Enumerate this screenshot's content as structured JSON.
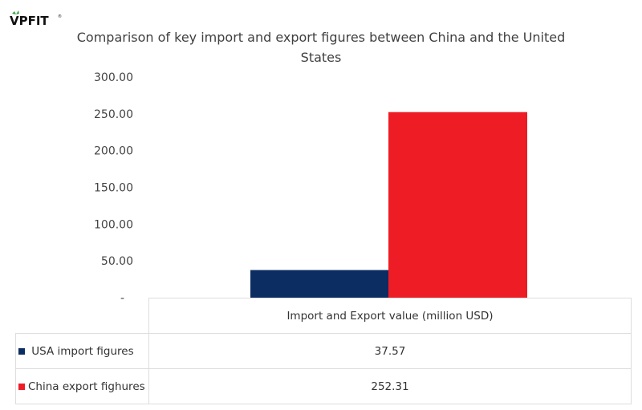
{
  "logo": {
    "text": "VPFIT",
    "mark": "®"
  },
  "chart_data": {
    "type": "bar",
    "title": "Comparison of key import and export figures between China and the United States",
    "xlabel": "Import and Export value (million USD)",
    "ylabel": "",
    "ylim": [
      0,
      300
    ],
    "yticks": [
      "-",
      "50.00",
      "100.00",
      "150.00",
      "200.00",
      "250.00",
      "300.00"
    ],
    "grid": false,
    "legend": "table-bottom",
    "series": [
      {
        "name": "USA import figures",
        "value": 37.57,
        "label": "37.57",
        "color": "#0c2d62"
      },
      {
        "name": "China export fighures",
        "value": 252.31,
        "label": "252.31",
        "color": "#ee1c25"
      }
    ]
  }
}
